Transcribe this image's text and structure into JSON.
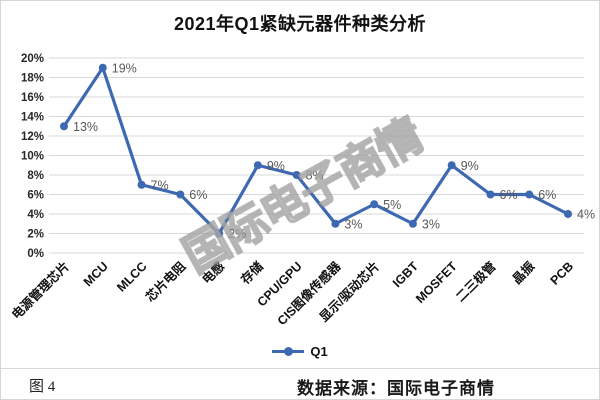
{
  "title": "2021年Q1紧缺元器件种类分析",
  "watermark": "国际电子商情",
  "legend": {
    "label": "Q1"
  },
  "footer": {
    "figure_label": "图 4",
    "source": "数据来源：国际电子商情"
  },
  "colors": {
    "line": "#3D68B2",
    "grid": "#D9D9D9",
    "data_label": "#595959",
    "axis_label": "#262626"
  },
  "chart_data": {
    "type": "line",
    "title": "2021年Q1紧缺元器件种类分析",
    "categories": [
      "电源管理芯片",
      "MCU",
      "MLCC",
      "芯片电阻",
      "电感",
      "存储",
      "CPU/GPU",
      "CIS图像传感器",
      "显示/驱动芯片",
      "IGBT",
      "MOSFET",
      "二三极管",
      "晶振",
      "PCB"
    ],
    "series": [
      {
        "name": "Q1",
        "values": [
          13,
          19,
          7,
          6,
          2,
          9,
          8,
          3,
          5,
          3,
          9,
          6,
          6,
          4
        ]
      }
    ],
    "xlabel": "",
    "ylabel": "",
    "ylim": [
      0,
      20
    ],
    "ytick_step": 2,
    "ytick_suffix": "%",
    "data_label_suffix": "%",
    "grid": true,
    "legend_position": "bottom"
  }
}
